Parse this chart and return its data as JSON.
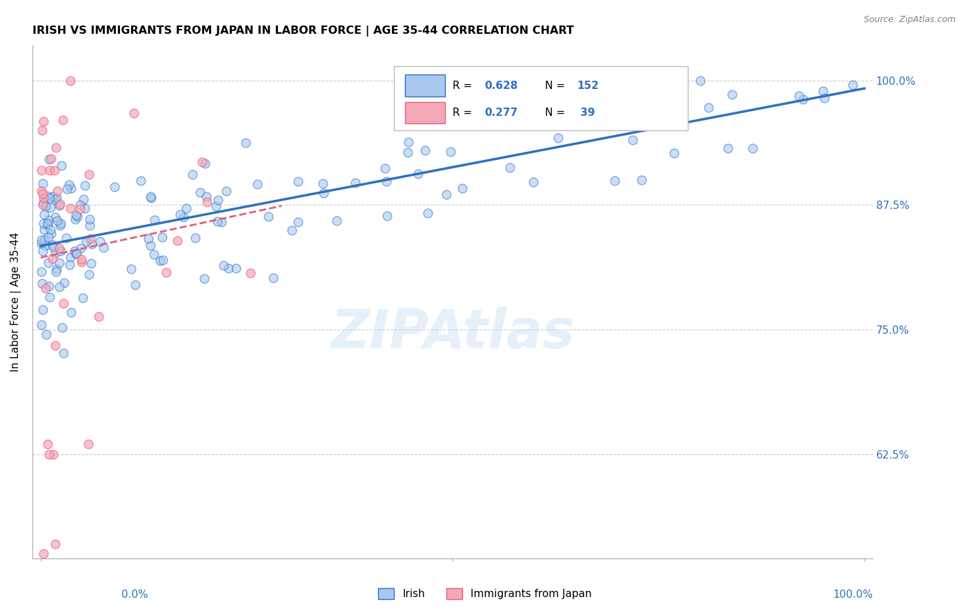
{
  "title": "IRISH VS IMMIGRANTS FROM JAPAN IN LABOR FORCE | AGE 35-44 CORRELATION CHART",
  "source": "Source: ZipAtlas.com",
  "ylabel": "In Labor Force | Age 35-44",
  "ytick_labels": [
    "100.0%",
    "87.5%",
    "75.0%",
    "62.5%"
  ],
  "ytick_values": [
    1.0,
    0.875,
    0.75,
    0.625
  ],
  "xlim": [
    0.0,
    1.0
  ],
  "ylim": [
    0.52,
    1.035
  ],
  "irish_color": "#a8c8f0",
  "japan_color": "#f4a8b8",
  "irish_line_color": "#3070c0",
  "japan_line_color": "#e06080",
  "irish_R": 0.628,
  "irish_N": 152,
  "japan_R": 0.277,
  "japan_N": 39,
  "watermark": "ZIPAtlas",
  "legend_text_color": "#3070c0"
}
